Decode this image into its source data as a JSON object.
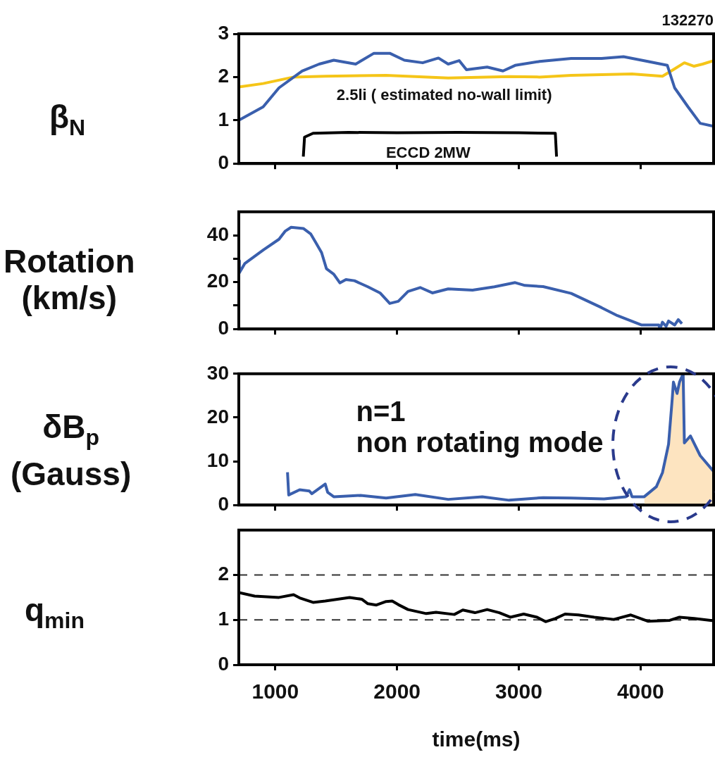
{
  "chart_data": [
    {
      "type": "line",
      "ylabel": "β$_{N}$",
      "annotations": [
        "132270",
        "2.5li ( estimated no-wall limit)",
        "ECCD 2MW"
      ],
      "xlim": [
        700,
        4600
      ],
      "xticks": [
        1000,
        2000,
        3000,
        4000
      ],
      "ylim": [
        0,
        3
      ],
      "yticks": [
        0,
        1,
        2,
        3
      ],
      "grid": false,
      "tick_labels": "y",
      "marker": "none",
      "series": [
        {
          "type": "line",
          "color": "#3a5fad",
          "x": [
            700,
            900,
            1030,
            1220,
            1360,
            1480,
            1660,
            1810,
            1940,
            2060,
            2210,
            2340,
            2420,
            2510,
            2570,
            2740,
            2870,
            2970,
            3170,
            3430,
            3680,
            3860,
            4060,
            4220,
            4280,
            4390,
            4490,
            4600
          ],
          "values": [
            1.0,
            1.31,
            1.75,
            2.14,
            2.3,
            2.39,
            2.3,
            2.55,
            2.55,
            2.39,
            2.33,
            2.44,
            2.3,
            2.38,
            2.17,
            2.23,
            2.14,
            2.27,
            2.36,
            2.43,
            2.43,
            2.47,
            2.36,
            2.27,
            1.75,
            1.31,
            0.93,
            0.86
          ]
        },
        {
          "type": "line",
          "color": "#f5c518",
          "x": [
            700,
            900,
            1150,
            1410,
            1910,
            2420,
            2920,
            3170,
            3430,
            3930,
            4180,
            4280,
            4360,
            4440,
            4510,
            4600
          ],
          "values": [
            1.77,
            1.85,
            2.0,
            2.02,
            2.04,
            1.98,
            2.01,
            2.0,
            2.04,
            2.07,
            2.02,
            2.19,
            2.33,
            2.25,
            2.3,
            2.38
          ]
        },
        {
          "type": "line",
          "color": "#000000",
          "x": [
            1230,
            1240,
            1310,
            1600,
            2000,
            2500,
            3000,
            3300,
            3310
          ],
          "values": [
            0.16,
            0.61,
            0.7,
            0.72,
            0.71,
            0.72,
            0.71,
            0.7,
            0.16
          ]
        }
      ]
    },
    {
      "type": "line",
      "ylabel": "Rotation\n(km/s)",
      "xlim": [
        700,
        4600
      ],
      "xticks": [
        1000,
        2000,
        3000,
        4000
      ],
      "ylim": [
        0,
        50
      ],
      "yticks": [
        0,
        {
          "value": 10,
          "label": null
        },
        20,
        {
          "value": 30,
          "label": null
        },
        40
      ],
      "grid": false,
      "tick_labels": "y",
      "marker": "none",
      "series": [
        {
          "type": "line",
          "color": "#3a5fad",
          "x": [
            700,
            705,
            750,
            900,
            1030,
            1080,
            1130,
            1230,
            1290,
            1330,
            1380,
            1420,
            1480,
            1530,
            1580,
            1650,
            1760,
            1860,
            1940,
            2010,
            2090,
            2190,
            2290,
            2420,
            2620,
            2800,
            2970,
            3050,
            3200,
            3430,
            3680,
            3810,
            4010,
            4150,
            4160,
            4180,
            4210,
            4230,
            4280,
            4310,
            4340
          ],
          "values": [
            29.1,
            24,
            28,
            33.7,
            38.3,
            41.7,
            43.4,
            42.9,
            40.6,
            37.1,
            32.6,
            25.7,
            23.4,
            19.7,
            21.1,
            20.6,
            18,
            15.4,
            10.9,
            11.8,
            16,
            17.7,
            15.4,
            17.1,
            16.6,
            18,
            19.8,
            18.6,
            18.1,
            15.2,
            9.1,
            5.7,
            1.7,
            1.7,
            0,
            2.9,
            1.1,
            3.4,
            1.7,
            4,
            2.3
          ]
        }
      ]
    },
    {
      "type": "line",
      "ylabel": "δB$_{p}$\n(Gauss)",
      "annotations": [
        "n=1\nnon rotating mode"
      ],
      "xlim": [
        700,
        4600
      ],
      "xticks": [
        1000,
        2000,
        3000,
        4000
      ],
      "ylim": [
        0,
        30
      ],
      "yticks": [
        0,
        10,
        20,
        30
      ],
      "grid": false,
      "tick_labels": "y",
      "marker": "none",
      "series": [
        {
          "type": "area",
          "color": "#fde4c0",
          "x": [
            4030,
            4130,
            4180,
            4230,
            4260,
            4270,
            4300,
            4320,
            4350,
            4360,
            4410,
            4490,
            4600
          ],
          "values": [
            1.9,
            4.2,
            7.4,
            13.9,
            24.2,
            28.1,
            25.5,
            28.1,
            30,
            14.2,
            15.8,
            11.3,
            7.7
          ]
        },
        {
          "type": "line",
          "color": "#3a5fad",
          "x": [
            1100,
            1110,
            1200,
            1280,
            1300,
            1410,
            1430,
            1480,
            1700,
            1910,
            2150,
            2420,
            2700,
            2920,
            3200,
            3430,
            3700,
            3880,
            3910,
            3930,
            4030,
            4130,
            4180,
            4230,
            4260,
            4270,
            4300,
            4320,
            4350,
            4360,
            4410,
            4490,
            4600
          ],
          "values": [
            7.5,
            2.3,
            3.5,
            3.2,
            2.6,
            4.8,
            2.9,
            1.9,
            2.2,
            1.6,
            2.4,
            1.3,
            1.9,
            1.1,
            1.7,
            1.6,
            1.4,
            1.9,
            3.5,
            1.9,
            1.9,
            4.2,
            7.4,
            13.9,
            24.2,
            28.1,
            25.5,
            28.1,
            30,
            14.2,
            15.8,
            11.3,
            7.7
          ]
        }
      ]
    },
    {
      "type": "line",
      "ylabel": "q$_{min}$",
      "xlabel": "time(ms)",
      "xlim": [
        700,
        4600
      ],
      "xticks": [
        1000,
        2000,
        3000,
        4000
      ],
      "ylim": [
        0,
        3
      ],
      "yticks": [
        0,
        1,
        2
      ],
      "grid": false,
      "marker": "none",
      "ref_lines": [
        {
          "axis": "y",
          "value": 2,
          "color": "#333333",
          "line_style": "dashed"
        },
        {
          "axis": "y",
          "value": 1,
          "color": "#333333",
          "line_style": "dashed"
        }
      ],
      "series": [
        {
          "type": "line",
          "color": "#000000",
          "x": [
            700,
            830,
            1030,
            1150,
            1200,
            1310,
            1410,
            1610,
            1710,
            1760,
            1830,
            1910,
            1960,
            2010,
            2090,
            2240,
            2320,
            2470,
            2540,
            2640,
            2740,
            2840,
            2930,
            3040,
            3150,
            3220,
            3300,
            3380,
            3490,
            3620,
            3780,
            3920,
            4060,
            4240,
            4320,
            4440,
            4600
          ],
          "values": [
            1.61,
            1.53,
            1.5,
            1.56,
            1.49,
            1.39,
            1.42,
            1.5,
            1.46,
            1.36,
            1.33,
            1.41,
            1.42,
            1.34,
            1.23,
            1.14,
            1.17,
            1.12,
            1.22,
            1.16,
            1.23,
            1.16,
            1.06,
            1.13,
            1.06,
            0.96,
            1.03,
            1.13,
            1.11,
            1.06,
            1.01,
            1.11,
            0.97,
            0.99,
            1.06,
            1.03,
            0.98
          ]
        }
      ]
    }
  ]
}
